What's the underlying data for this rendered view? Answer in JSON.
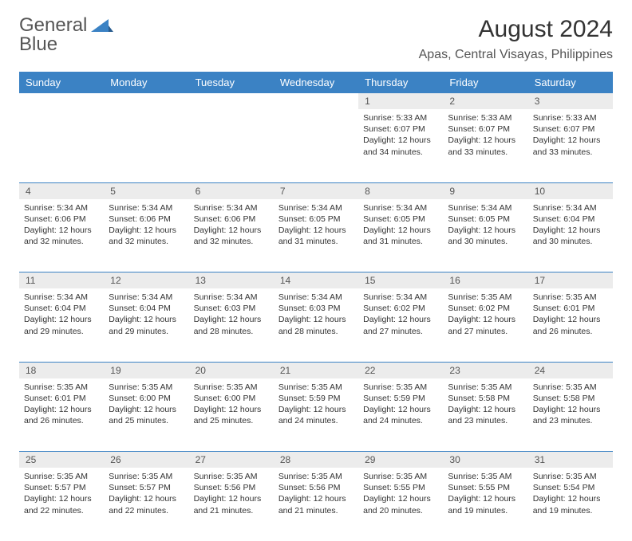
{
  "logo": {
    "text1": "General",
    "text2": "Blue"
  },
  "title": "August 2024",
  "location": "Apas, Central Visayas, Philippines",
  "colors": {
    "header_bg": "#3b82c4",
    "header_text": "#ffffff",
    "daynum_bg": "#ececec",
    "border": "#3b82c4",
    "logo_gray": "#555555",
    "logo_blue": "#3b82c4"
  },
  "weekdays": [
    "Sunday",
    "Monday",
    "Tuesday",
    "Wednesday",
    "Thursday",
    "Friday",
    "Saturday"
  ],
  "weeks": [
    {
      "nums": [
        "",
        "",
        "",
        "",
        "1",
        "2",
        "3"
      ],
      "cells": [
        null,
        null,
        null,
        null,
        {
          "sunrise": "5:33 AM",
          "sunset": "6:07 PM",
          "daylight": "12 hours and 34 minutes."
        },
        {
          "sunrise": "5:33 AM",
          "sunset": "6:07 PM",
          "daylight": "12 hours and 33 minutes."
        },
        {
          "sunrise": "5:33 AM",
          "sunset": "6:07 PM",
          "daylight": "12 hours and 33 minutes."
        }
      ]
    },
    {
      "nums": [
        "4",
        "5",
        "6",
        "7",
        "8",
        "9",
        "10"
      ],
      "cells": [
        {
          "sunrise": "5:34 AM",
          "sunset": "6:06 PM",
          "daylight": "12 hours and 32 minutes."
        },
        {
          "sunrise": "5:34 AM",
          "sunset": "6:06 PM",
          "daylight": "12 hours and 32 minutes."
        },
        {
          "sunrise": "5:34 AM",
          "sunset": "6:06 PM",
          "daylight": "12 hours and 32 minutes."
        },
        {
          "sunrise": "5:34 AM",
          "sunset": "6:05 PM",
          "daylight": "12 hours and 31 minutes."
        },
        {
          "sunrise": "5:34 AM",
          "sunset": "6:05 PM",
          "daylight": "12 hours and 31 minutes."
        },
        {
          "sunrise": "5:34 AM",
          "sunset": "6:05 PM",
          "daylight": "12 hours and 30 minutes."
        },
        {
          "sunrise": "5:34 AM",
          "sunset": "6:04 PM",
          "daylight": "12 hours and 30 minutes."
        }
      ]
    },
    {
      "nums": [
        "11",
        "12",
        "13",
        "14",
        "15",
        "16",
        "17"
      ],
      "cells": [
        {
          "sunrise": "5:34 AM",
          "sunset": "6:04 PM",
          "daylight": "12 hours and 29 minutes."
        },
        {
          "sunrise": "5:34 AM",
          "sunset": "6:04 PM",
          "daylight": "12 hours and 29 minutes."
        },
        {
          "sunrise": "5:34 AM",
          "sunset": "6:03 PM",
          "daylight": "12 hours and 28 minutes."
        },
        {
          "sunrise": "5:34 AM",
          "sunset": "6:03 PM",
          "daylight": "12 hours and 28 minutes."
        },
        {
          "sunrise": "5:34 AM",
          "sunset": "6:02 PM",
          "daylight": "12 hours and 27 minutes."
        },
        {
          "sunrise": "5:35 AM",
          "sunset": "6:02 PM",
          "daylight": "12 hours and 27 minutes."
        },
        {
          "sunrise": "5:35 AM",
          "sunset": "6:01 PM",
          "daylight": "12 hours and 26 minutes."
        }
      ]
    },
    {
      "nums": [
        "18",
        "19",
        "20",
        "21",
        "22",
        "23",
        "24"
      ],
      "cells": [
        {
          "sunrise": "5:35 AM",
          "sunset": "6:01 PM",
          "daylight": "12 hours and 26 minutes."
        },
        {
          "sunrise": "5:35 AM",
          "sunset": "6:00 PM",
          "daylight": "12 hours and 25 minutes."
        },
        {
          "sunrise": "5:35 AM",
          "sunset": "6:00 PM",
          "daylight": "12 hours and 25 minutes."
        },
        {
          "sunrise": "5:35 AM",
          "sunset": "5:59 PM",
          "daylight": "12 hours and 24 minutes."
        },
        {
          "sunrise": "5:35 AM",
          "sunset": "5:59 PM",
          "daylight": "12 hours and 24 minutes."
        },
        {
          "sunrise": "5:35 AM",
          "sunset": "5:58 PM",
          "daylight": "12 hours and 23 minutes."
        },
        {
          "sunrise": "5:35 AM",
          "sunset": "5:58 PM",
          "daylight": "12 hours and 23 minutes."
        }
      ]
    },
    {
      "nums": [
        "25",
        "26",
        "27",
        "28",
        "29",
        "30",
        "31"
      ],
      "cells": [
        {
          "sunrise": "5:35 AM",
          "sunset": "5:57 PM",
          "daylight": "12 hours and 22 minutes."
        },
        {
          "sunrise": "5:35 AM",
          "sunset": "5:57 PM",
          "daylight": "12 hours and 22 minutes."
        },
        {
          "sunrise": "5:35 AM",
          "sunset": "5:56 PM",
          "daylight": "12 hours and 21 minutes."
        },
        {
          "sunrise": "5:35 AM",
          "sunset": "5:56 PM",
          "daylight": "12 hours and 21 minutes."
        },
        {
          "sunrise": "5:35 AM",
          "sunset": "5:55 PM",
          "daylight": "12 hours and 20 minutes."
        },
        {
          "sunrise": "5:35 AM",
          "sunset": "5:55 PM",
          "daylight": "12 hours and 19 minutes."
        },
        {
          "sunrise": "5:35 AM",
          "sunset": "5:54 PM",
          "daylight": "12 hours and 19 minutes."
        }
      ]
    }
  ],
  "labels": {
    "sunrise": "Sunrise: ",
    "sunset": "Sunset: ",
    "daylight": "Daylight: "
  }
}
